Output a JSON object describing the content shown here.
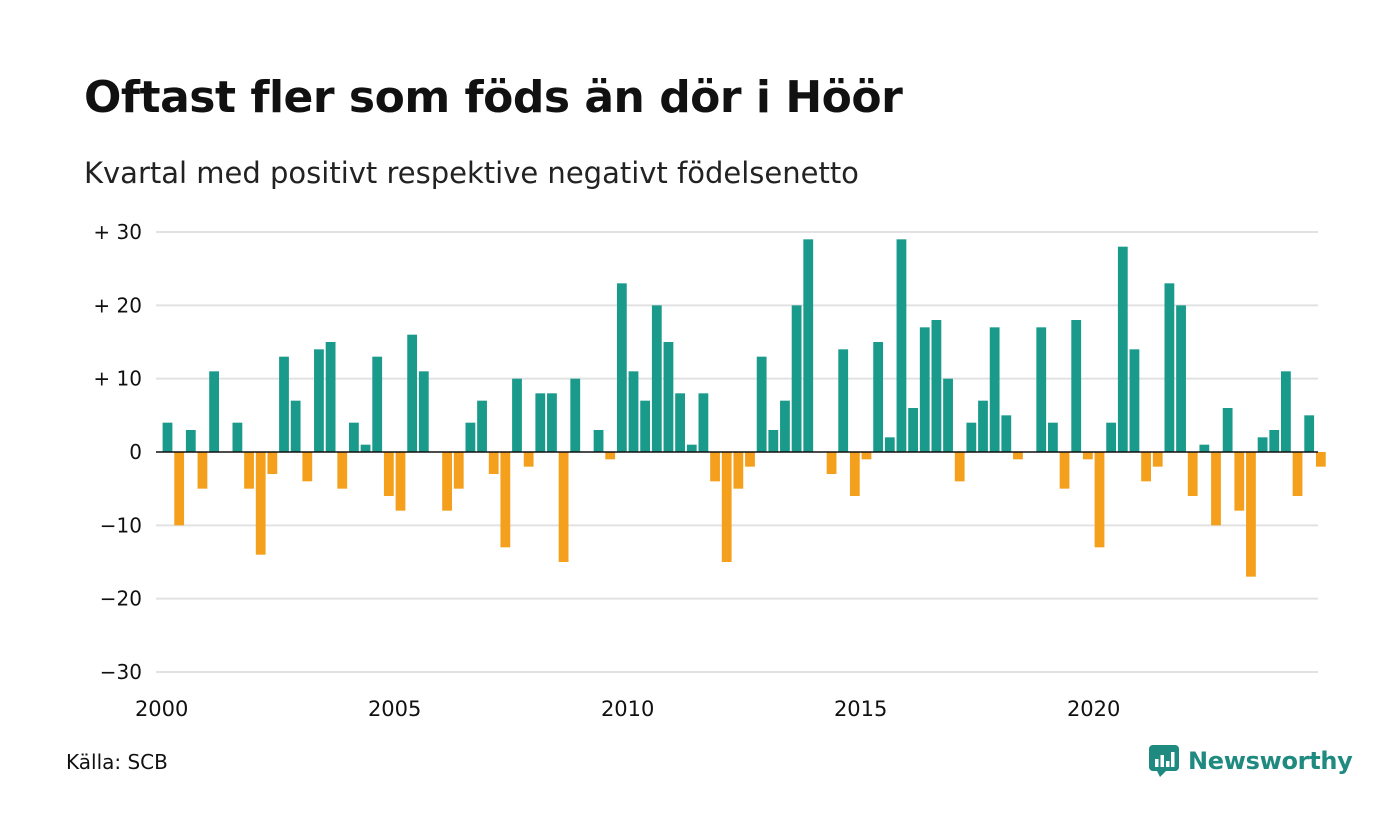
{
  "header": {
    "title": "Oftast fler som föds än dör i Höör",
    "subtitle": "Kvartal med positivt respektive negativt födelsenetto"
  },
  "footer": {
    "source": "Källa: SCB",
    "brand": "Newsworthy",
    "brand_icon": "newsworthy-logo-icon"
  },
  "colors": {
    "positive": "#1a9a8b",
    "negative": "#f5a01c",
    "grid": "#e2e2e2",
    "brand": "#1f8a80"
  },
  "chart_data": {
    "type": "bar",
    "title": "Oftast fler som föds än dör i Höör",
    "subtitle": "Kvartal med positivt respektive negativt födelsenetto",
    "ylim": [
      -30,
      30
    ],
    "yticks": [
      30,
      20,
      10,
      0,
      -10,
      -20,
      -30
    ],
    "ytick_labels": [
      "+ 30",
      "+ 20",
      "+ 10",
      "0",
      "−10",
      "−20",
      "−30"
    ],
    "xtick_labels": [
      "2000",
      "2005",
      "2010",
      "2015",
      "2020"
    ],
    "xtick_years": [
      2000,
      2005,
      2010,
      2015,
      2020
    ],
    "x_start": "2000-Q1",
    "grid": true,
    "values": [
      4,
      -10,
      3,
      -5,
      11,
      0,
      4,
      -5,
      -14,
      -3,
      13,
      7,
      -4,
      14,
      15,
      -5,
      4,
      1,
      13,
      -6,
      -8,
      16,
      11,
      0,
      -8,
      -5,
      4,
      7,
      -3,
      -13,
      10,
      -2,
      8,
      8,
      -15,
      10,
      0,
      3,
      -1,
      23,
      11,
      7,
      20,
      15,
      8,
      1,
      8,
      -4,
      -15,
      -5,
      -2,
      13,
      3,
      7,
      20,
      29,
      0,
      -3,
      14,
      -6,
      -1,
      15,
      2,
      29,
      6,
      17,
      18,
      10,
      -4,
      4,
      7,
      17,
      5,
      -1,
      0,
      17,
      4,
      -5,
      18,
      -1,
      -13,
      4,
      28,
      14,
      -4,
      -2,
      23,
      20,
      -6,
      1,
      -10,
      6,
      -8,
      -17,
      2,
      3,
      11,
      -6,
      5,
      -2
    ]
  }
}
